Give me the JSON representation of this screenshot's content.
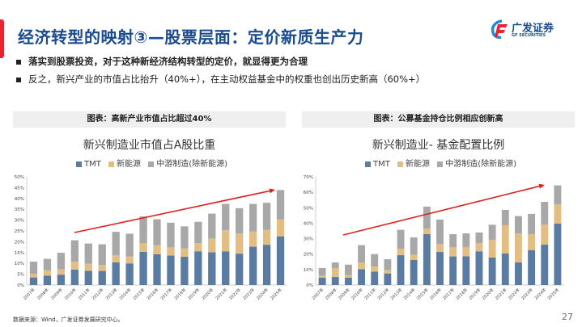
{
  "header": {
    "title": "经济转型的映射③—股票层面：定价新质生产力",
    "logo_cn": "广发证券",
    "logo_en": "GF SECURITIES"
  },
  "bullets": [
    "落实到股票投资，对于这种新经济结构转型的定价，就显得更为合理",
    "反之，新兴产业的市值占比抬升（40%+），在主动权益基金中的权重也创出历史新高（60%+）"
  ],
  "colors": {
    "tmt": "#5a7ca3",
    "new_energy": "#e2be84",
    "midstream": "#a8a8a8",
    "arrow": "#e02020",
    "title": "#1b4b8f"
  },
  "chart_data": [
    {
      "type": "bar",
      "stacked": true,
      "header": "图表：高新产业市值占比超过40%",
      "title": "新兴制造业市值占A股比重",
      "categories": [
        "2007年",
        "2008年",
        "2009年",
        "2010年",
        "2011年",
        "2012年",
        "2013年",
        "2014年",
        "2015年",
        "2016年",
        "2017年",
        "2018年",
        "2019年",
        "2020年",
        "2021年",
        "2022年",
        "2023年",
        "2024年",
        "2025年"
      ],
      "series": [
        {
          "name": "TMT",
          "values": [
            3.5,
            4.3,
            4.8,
            7.1,
            6.6,
            6.5,
            10.5,
            10.0,
            15.3,
            14.2,
            13.6,
            13.1,
            15.6,
            15.1,
            15.6,
            14.5,
            17.7,
            18.6,
            22.5
          ]
        },
        {
          "name": "新能源",
          "values": [
            1.7,
            2.5,
            2.5,
            3.7,
            3.2,
            2.8,
            3.2,
            3.2,
            4.1,
            4.2,
            3.8,
            3.8,
            3.8,
            6.4,
            9.7,
            9.3,
            7.0,
            6.9,
            7.8
          ]
        },
        {
          "name": "中游制造(除新能源)",
          "values": [
            5.6,
            5.3,
            7.6,
            9.9,
            9.4,
            9.5,
            10.9,
            10.5,
            12.3,
            12.0,
            11.4,
            10.2,
            9.8,
            11.5,
            12.2,
            11.7,
            12.8,
            12.5,
            13.6
          ]
        }
      ],
      "yticks": [
        "0%",
        "5%",
        "10%",
        "15%",
        "20%",
        "25%",
        "30%",
        "35%",
        "40%",
        "45%",
        "50%"
      ],
      "ylim": [
        0,
        50
      ],
      "grid": false,
      "legend": "top",
      "annotation": "red upward trend arrow"
    },
    {
      "type": "bar",
      "stacked": true,
      "header": "图表：公募基金持仓比例相应创新高",
      "title": "新兴制造业- 基金配置比例",
      "categories": [
        "2007年",
        "2008年",
        "2009年",
        "2010年",
        "2011年",
        "2012年",
        "2013年",
        "2014年",
        "2015年",
        "2016年",
        "2017年",
        "2018年",
        "2019年",
        "2020年",
        "2021年",
        "2022年",
        "2023年",
        "2024年",
        "2025年"
      ],
      "series": [
        {
          "name": "TMT",
          "values": [
            4.7,
            5.2,
            4.7,
            10.3,
            8.7,
            7.5,
            19.3,
            16.2,
            32.9,
            21.4,
            18.5,
            18.6,
            21.8,
            17.8,
            20.4,
            14.6,
            22.6,
            26.1,
            39.7
          ]
        },
        {
          "name": "新能源",
          "values": [
            1.2,
            5.8,
            1.7,
            4.3,
            3.3,
            2.1,
            4.2,
            3.3,
            3.7,
            5.1,
            5.9,
            6.0,
            5.4,
            11.3,
            18.3,
            18.7,
            10.2,
            13.1,
            12.4
          ]
        },
        {
          "name": "中游制造(除新能源)",
          "values": [
            5.1,
            3.6,
            6.8,
            11.2,
            8.0,
            7.1,
            12.2,
            11.3,
            14.1,
            15.8,
            8.5,
            8.8,
            6.8,
            9.9,
            9.9,
            11.3,
            13.2,
            14.6,
            12.4
          ]
        }
      ],
      "yticks": [
        "0%",
        "10%",
        "20%",
        "30%",
        "40%",
        "50%",
        "60%",
        "70%"
      ],
      "ylim": [
        0,
        70
      ],
      "grid": false,
      "legend": "top",
      "annotation": "red upward trend arrow"
    }
  ],
  "footer": {
    "source": "数据来源：Wind，广发证券发展研究中心。",
    "page": "27"
  }
}
